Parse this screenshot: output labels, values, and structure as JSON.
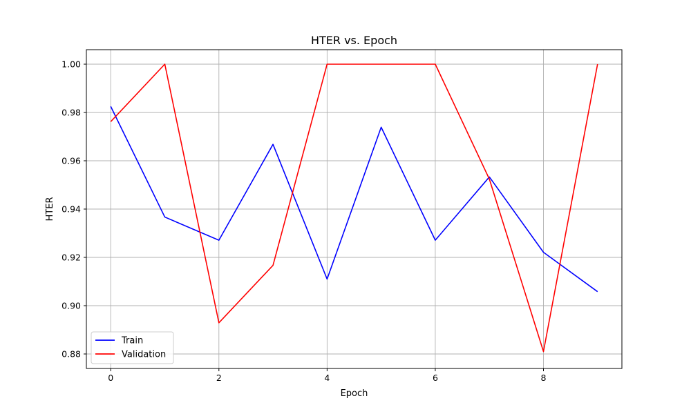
{
  "chart_data": {
    "type": "line",
    "title": "HTER vs. Epoch",
    "xlabel": "Epoch",
    "ylabel": "HTER",
    "xlim": [
      -0.45,
      9.45
    ],
    "ylim": [
      0.874,
      1.006
    ],
    "xticks": [
      0,
      2,
      4,
      6,
      8
    ],
    "xtick_labels": [
      "0",
      "2",
      "4",
      "6",
      "8"
    ],
    "yticks": [
      0.88,
      0.9,
      0.92,
      0.94,
      0.96,
      0.98,
      1.0
    ],
    "ytick_labels": [
      "0.88",
      "0.90",
      "0.92",
      "0.94",
      "0.96",
      "0.98",
      "1.00"
    ],
    "grid": true,
    "legend_position": "lower-left",
    "x": [
      0,
      1,
      2,
      3,
      4,
      5,
      6,
      7,
      8,
      9
    ],
    "series": [
      {
        "name": "Train",
        "color": "#0000ff",
        "values": [
          0.9825,
          0.9367,
          0.9271,
          0.9668,
          0.911,
          0.9739,
          0.9271,
          0.9533,
          0.9221,
          0.9058
        ]
      },
      {
        "name": "Validation",
        "color": "#ff0000",
        "values": [
          0.9762,
          1.0,
          0.8929,
          0.9167,
          1.0,
          1.0,
          1.0,
          0.9524,
          0.881,
          1.0
        ]
      }
    ]
  }
}
